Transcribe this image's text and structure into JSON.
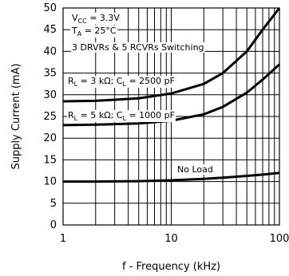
{
  "chart_data": {
    "type": "line",
    "xlabel": "f - Frequency (kHz)",
    "ylabel": "Supply Current (mA)",
    "xscale": "log",
    "xlim": [
      1,
      100
    ],
    "ylim": [
      0,
      50
    ],
    "grid": true,
    "x_tick_labels": [
      "1",
      "10",
      "100"
    ],
    "y_ticks": [
      0,
      5,
      10,
      15,
      20,
      25,
      30,
      35,
      40,
      45,
      50
    ],
    "annotations": {
      "vcc": {
        "main": "V",
        "sub": "CC",
        "rest": " = 3.3V"
      },
      "ta": {
        "main": "T",
        "sub": "A",
        "rest": " = 25°C"
      },
      "condition": "3 DRVRs & 5 RCVRs Switching"
    },
    "series": [
      {
        "label": {
          "r_main": "R",
          "r_sub": "L",
          "r_rest": " = 3 kΩ; C",
          "c_sub": "L",
          "c_rest": " = 2500 pF"
        },
        "x": [
          1,
          2,
          5,
          10,
          20,
          30,
          50,
          70,
          100
        ],
        "y": [
          28.5,
          28.6,
          29.2,
          30.3,
          32.5,
          35.0,
          40.0,
          45.0,
          50.0
        ]
      },
      {
        "label": {
          "r_main": "R",
          "r_sub": "L",
          "r_rest": " = 5 kΩ; C",
          "c_sub": "L",
          "c_rest": " = 1000 pF"
        },
        "x": [
          1,
          2,
          5,
          10,
          20,
          30,
          50,
          70,
          100
        ],
        "y": [
          23.0,
          23.1,
          23.4,
          24.0,
          25.5,
          27.2,
          30.5,
          33.5,
          37.0
        ]
      },
      {
        "label": {
          "text": "No Load"
        },
        "x": [
          1,
          2,
          5,
          10,
          20,
          30,
          50,
          70,
          100
        ],
        "y": [
          10.0,
          10.0,
          10.1,
          10.3,
          10.6,
          10.9,
          11.3,
          11.6,
          12.0
        ]
      }
    ]
  }
}
